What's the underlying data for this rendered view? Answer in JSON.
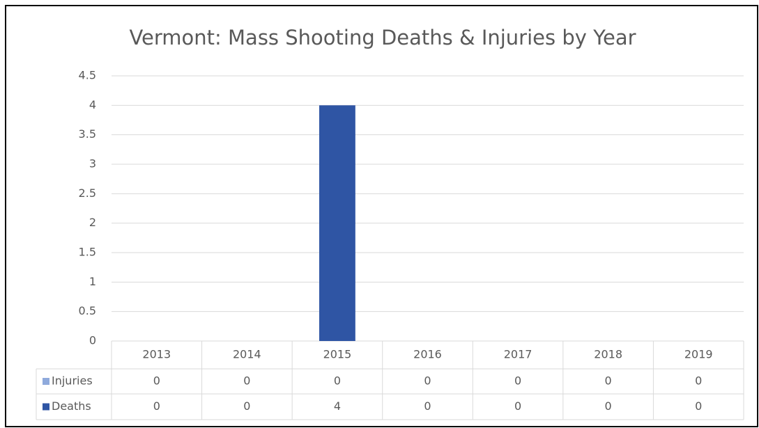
{
  "chart_data": {
    "type": "stacked_bar",
    "title": "Vermont: Mass Shooting Deaths & Injuries by Year",
    "categories": [
      "2013",
      "2014",
      "2015",
      "2016",
      "2017",
      "2018",
      "2019"
    ],
    "series": [
      {
        "name": "Injuries",
        "color": "#8faadc",
        "values": [
          0,
          0,
          0,
          0,
          0,
          0,
          0
        ]
      },
      {
        "name": "Deaths",
        "color": "#2f55a4",
        "values": [
          0,
          0,
          4,
          0,
          0,
          0,
          0
        ]
      }
    ],
    "ylim": [
      0,
      4.5
    ],
    "yticks": [
      0,
      0.5,
      1,
      1.5,
      2,
      2.5,
      3,
      3.5,
      4,
      4.5
    ],
    "grid": true
  }
}
